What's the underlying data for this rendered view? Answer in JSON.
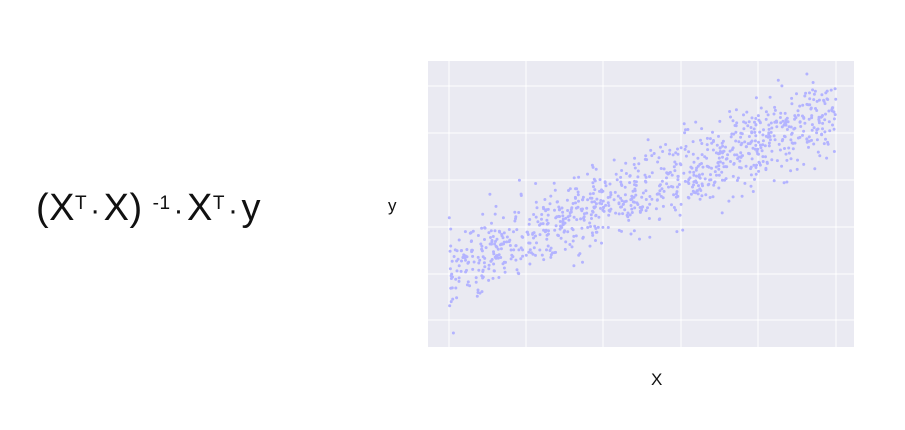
{
  "formula": {
    "open_paren": "(",
    "x1": "X",
    "t1": "T",
    "dot1": "·",
    "x2": "X",
    "close_paren": ")",
    "inv": "-1",
    "dot2": "·",
    "x3": "X",
    "t2": "T",
    "dot3": "·",
    "y": "y"
  },
  "chart_data": {
    "type": "scatter",
    "title": "",
    "xlabel": "X",
    "ylabel": "y",
    "xlim": [
      0,
      1
    ],
    "ylim": [
      0,
      1
    ],
    "grid": true,
    "tick_labels_visible": false,
    "n_points": 1000,
    "trend": {
      "intercept": 0.24,
      "slope": 0.62
    },
    "point_color": "#b3b3ff",
    "background_color": "#eaeaf2",
    "grid_color": "#ffffff"
  }
}
